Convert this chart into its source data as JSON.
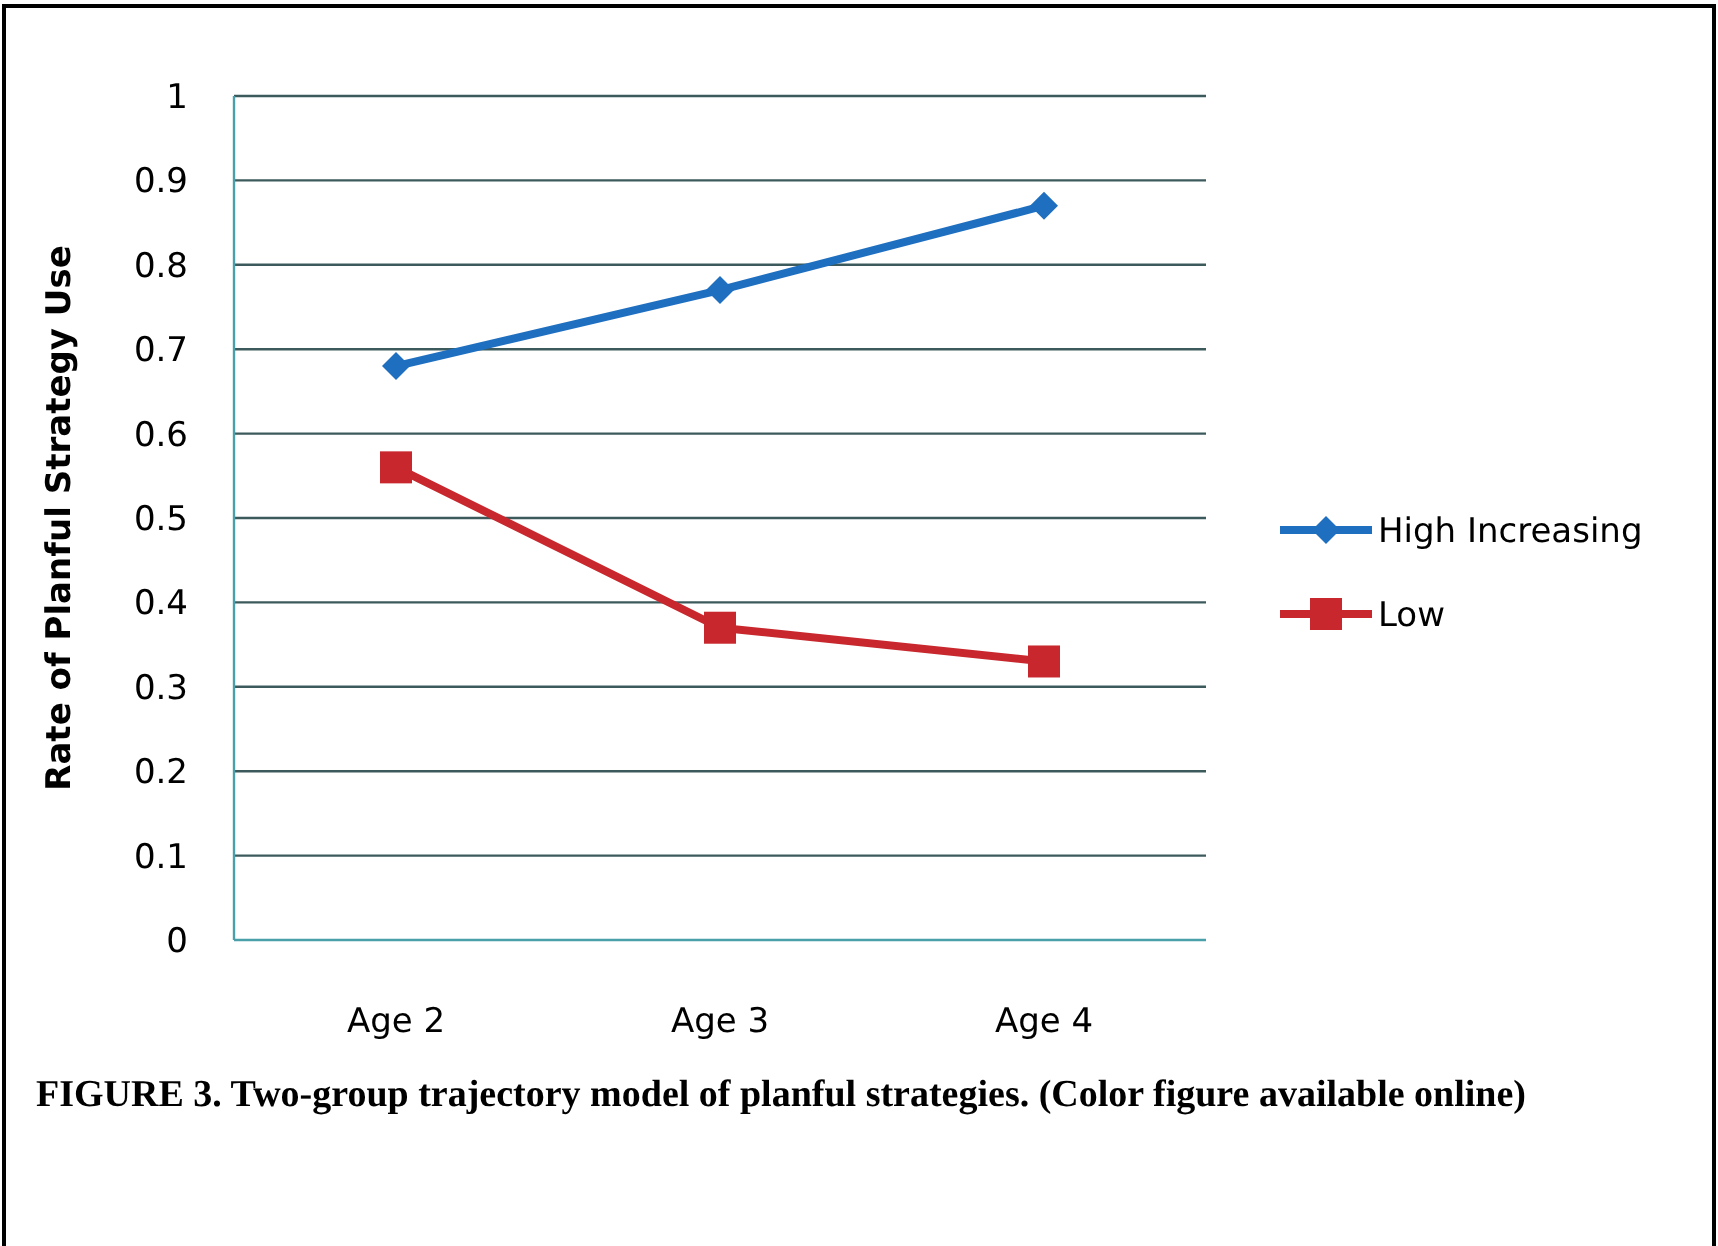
{
  "chart_data": {
    "type": "line",
    "ylabel": "Rate of Planful Strategy Use",
    "categories": [
      "Age 2",
      "Age 3",
      "Age 4"
    ],
    "series": [
      {
        "name": "High Increasing",
        "color": "#1f6fc0",
        "values": [
          0.68,
          0.77,
          0.87
        ],
        "marker": "diamond"
      },
      {
        "name": "Low",
        "color": "#c8282d",
        "values": [
          0.56,
          0.37,
          0.33
        ],
        "marker": "square"
      }
    ],
    "ylim": [
      0,
      1
    ],
    "yticks": [
      0,
      0.1,
      0.2,
      0.3,
      0.4,
      0.5,
      0.6,
      0.7,
      0.8,
      0.9,
      1
    ],
    "grid": "y",
    "legend": "right",
    "line_style": "solid",
    "annotations": [
      "FIGURE 3. Two-group trajectory model of planful strategies. (Color figure available online)"
    ]
  }
}
